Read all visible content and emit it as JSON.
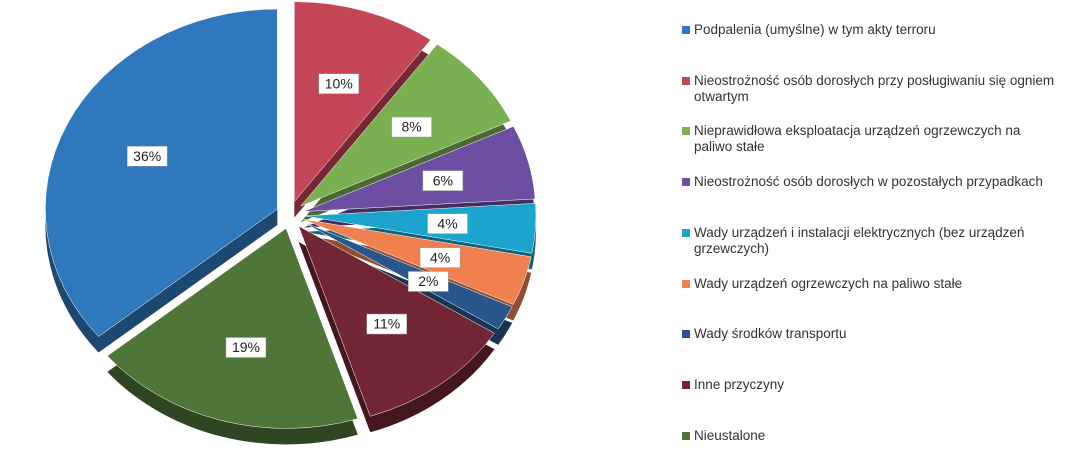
{
  "chart_data": {
    "type": "pie",
    "categories": [
      "Podpalenia (umyślne) w tym akty terroru",
      "Nieostrożność osób dorosłych przy posługiwaniu się ogniem otwartym",
      "Nieprawidłowa eksploatacja urządzeń ogrzewczych na paliwo stałe",
      "Nieostrożność osób dorosłych w pozostałych przypadkach",
      "Wady urządzeń i instalacji elektrycznych (bez urządzeń grzewczych)",
      "Wady urządzeń ogrzewczych na paliwo stałe",
      "Wady środków transportu",
      "Inne przyczyny",
      "Nieustalone"
    ],
    "values": [
      36,
      10,
      8,
      6,
      4,
      4,
      2,
      11,
      19
    ],
    "value_labels": [
      "36%",
      "10%",
      "8%",
      "6%",
      "4%",
      "4%",
      "2%",
      "11%",
      "19%"
    ],
    "colors": [
      "#2f78bd",
      "#c44556",
      "#7bb052",
      "#6c4ea3",
      "#1ca4cf",
      "#f0804f",
      "#28568a",
      "#722634",
      "#4f7538"
    ],
    "legend": "right"
  }
}
